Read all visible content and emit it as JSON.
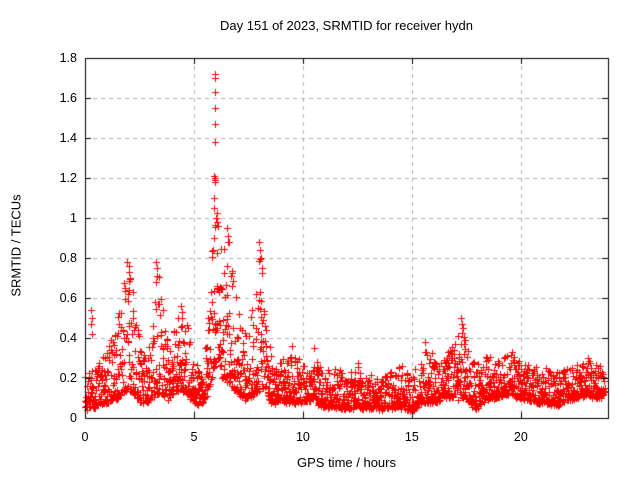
{
  "title": "Day 151 of 2023, SRMTID for receiver hydn",
  "x_axis": {
    "label": "GPS time / hours",
    "tick_labels": [
      "0",
      "5",
      "10",
      "15",
      "20"
    ],
    "tick_values": [
      0,
      5,
      10,
      15,
      20
    ],
    "range": [
      0,
      24
    ]
  },
  "y_axis": {
    "label": "SRMTID / TECUs",
    "tick_labels": [
      "0",
      "0.2",
      "0.4",
      "0.6",
      "0.8",
      "1",
      "1.2",
      "1.4",
      "1.6",
      "1.8"
    ],
    "tick_values": [
      0,
      0.2,
      0.4,
      0.6,
      0.8,
      1.0,
      1.2,
      1.4,
      1.6,
      1.8
    ],
    "range": [
      0,
      1.8
    ]
  },
  "chart_data": {
    "type": "scatter",
    "title": "Day 151 of 2023, SRMTID for receiver hydn",
    "xlabel": "GPS time / hours",
    "ylabel": "SRMTID / TECUs",
    "xlim": [
      0,
      24
    ],
    "ylim": [
      0,
      1.8
    ],
    "grid": "dashed",
    "legend": "none",
    "marker": "plus",
    "marker_color": "#ff0000",
    "grid_color": "#b3b3b3",
    "frame_color": "#000000",
    "n_points": 2400,
    "t_end": 23.85,
    "value_skew": 2.1,
    "seed": 151,
    "envelope": [
      [
        0.0,
        0.05,
        0.22
      ],
      [
        0.3,
        0.05,
        0.3
      ],
      [
        0.6,
        0.06,
        0.28
      ],
      [
        1.0,
        0.08,
        0.35
      ],
      [
        1.4,
        0.1,
        0.48
      ],
      [
        1.8,
        0.12,
        0.72
      ],
      [
        2.0,
        0.15,
        0.78
      ],
      [
        2.2,
        0.12,
        0.68
      ],
      [
        2.5,
        0.08,
        0.4
      ],
      [
        2.8,
        0.08,
        0.28
      ],
      [
        3.1,
        0.1,
        0.45
      ],
      [
        3.3,
        0.12,
        0.78
      ],
      [
        3.5,
        0.12,
        0.62
      ],
      [
        3.8,
        0.1,
        0.38
      ],
      [
        4.1,
        0.12,
        0.45
      ],
      [
        4.4,
        0.14,
        0.55
      ],
      [
        4.7,
        0.12,
        0.48
      ],
      [
        5.0,
        0.08,
        0.28
      ],
      [
        5.3,
        0.07,
        0.24
      ],
      [
        5.6,
        0.1,
        0.4
      ],
      [
        5.9,
        0.25,
        1.0
      ],
      [
        6.1,
        0.3,
        1.05
      ],
      [
        6.3,
        0.2,
        0.9
      ],
      [
        6.6,
        0.18,
        0.92
      ],
      [
        6.9,
        0.14,
        0.65
      ],
      [
        7.2,
        0.1,
        0.45
      ],
      [
        7.5,
        0.1,
        0.5
      ],
      [
        7.8,
        0.12,
        0.6
      ],
      [
        8.05,
        0.15,
        0.86
      ],
      [
        8.3,
        0.1,
        0.5
      ],
      [
        8.6,
        0.08,
        0.32
      ],
      [
        9.0,
        0.08,
        0.28
      ],
      [
        9.5,
        0.08,
        0.33
      ],
      [
        10.0,
        0.08,
        0.27
      ],
      [
        10.5,
        0.09,
        0.32
      ],
      [
        11.0,
        0.05,
        0.24
      ],
      [
        11.5,
        0.05,
        0.27
      ],
      [
        12.0,
        0.05,
        0.2
      ],
      [
        12.5,
        0.05,
        0.28
      ],
      [
        13.0,
        0.05,
        0.24
      ],
      [
        13.5,
        0.05,
        0.2
      ],
      [
        14.0,
        0.05,
        0.24
      ],
      [
        14.5,
        0.05,
        0.27
      ],
      [
        15.0,
        0.04,
        0.23
      ],
      [
        15.5,
        0.08,
        0.36
      ],
      [
        16.0,
        0.08,
        0.33
      ],
      [
        16.5,
        0.1,
        0.32
      ],
      [
        17.0,
        0.1,
        0.38
      ],
      [
        17.3,
        0.1,
        0.47
      ],
      [
        17.6,
        0.08,
        0.34
      ],
      [
        18.0,
        0.05,
        0.28
      ],
      [
        18.5,
        0.1,
        0.31
      ],
      [
        19.0,
        0.1,
        0.29
      ],
      [
        19.5,
        0.12,
        0.32
      ],
      [
        20.0,
        0.1,
        0.29
      ],
      [
        20.5,
        0.08,
        0.27
      ],
      [
        21.0,
        0.08,
        0.24
      ],
      [
        21.5,
        0.06,
        0.24
      ],
      [
        22.0,
        0.08,
        0.25
      ],
      [
        22.5,
        0.1,
        0.27
      ],
      [
        23.0,
        0.12,
        0.29
      ],
      [
        23.5,
        0.1,
        0.27
      ],
      [
        23.85,
        0.12,
        0.24
      ]
    ],
    "peak_points": [
      [
        5.95,
        1.72
      ],
      [
        5.97,
        1.7
      ],
      [
        5.96,
        1.63
      ],
      [
        5.98,
        1.55
      ],
      [
        5.95,
        1.47
      ],
      [
        5.97,
        1.38
      ],
      [
        5.93,
        1.21
      ],
      [
        5.95,
        1.2
      ],
      [
        5.96,
        1.19
      ],
      [
        5.97,
        1.18
      ],
      [
        5.94,
        1.1
      ],
      [
        5.92,
        1.05
      ],
      [
        6.0,
        1.0
      ],
      [
        6.05,
        0.98
      ],
      [
        6.1,
        0.96
      ],
      [
        0.28,
        0.54
      ],
      [
        0.3,
        0.5
      ],
      [
        0.29,
        0.47
      ],
      [
        0.3,
        0.42
      ],
      [
        1.95,
        0.78
      ],
      [
        2.0,
        0.76
      ],
      [
        2.02,
        0.73
      ],
      [
        3.28,
        0.78
      ],
      [
        3.3,
        0.75
      ],
      [
        3.32,
        0.71
      ],
      [
        4.4,
        0.56
      ],
      [
        4.45,
        0.53
      ],
      [
        6.5,
        0.95
      ],
      [
        6.55,
        0.91
      ],
      [
        6.6,
        0.88
      ],
      [
        8.0,
        0.88
      ],
      [
        8.05,
        0.84
      ],
      [
        8.08,
        0.8
      ],
      [
        8.1,
        0.75
      ],
      [
        9.5,
        0.36
      ],
      [
        10.5,
        0.35
      ],
      [
        17.25,
        0.5
      ],
      [
        17.3,
        0.47
      ],
      [
        17.35,
        0.45
      ],
      [
        15.6,
        0.38
      ],
      [
        19.6,
        0.33
      ],
      [
        23.1,
        0.3
      ]
    ]
  }
}
